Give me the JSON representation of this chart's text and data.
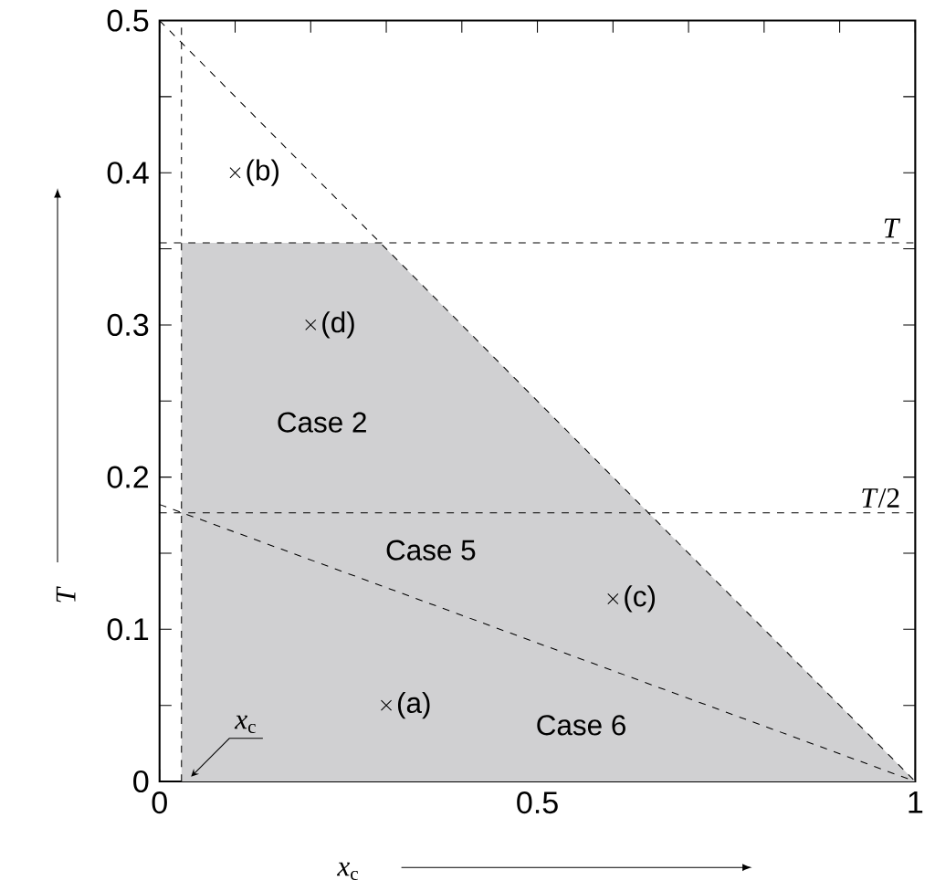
{
  "chart_data": {
    "type": "line",
    "xlabel": "*x*$_{c}$",
    "ylabel": "*T*",
    "xlim": [
      0,
      1
    ],
    "ylim": [
      0,
      0.5
    ],
    "xticks": [
      0,
      {
        "value": 0.1,
        "label": null
      },
      {
        "value": 0.2,
        "label": null
      },
      {
        "value": 0.3,
        "label": null
      },
      {
        "value": 0.4,
        "label": null
      },
      0.5,
      {
        "value": 0.6,
        "label": null
      },
      {
        "value": 0.7,
        "label": null
      },
      {
        "value": 0.8,
        "label": null
      },
      {
        "value": 0.9,
        "label": null
      },
      1
    ],
    "yticks": [
      0,
      {
        "value": 0.05,
        "label": null
      },
      0.1,
      {
        "value": 0.15,
        "label": null
      },
      0.2,
      {
        "value": 0.25,
        "label": null
      },
      0.3,
      {
        "value": 0.35,
        "label": null
      },
      0.4,
      {
        "value": 0.45,
        "label": null
      },
      0.5
    ],
    "series": [
      {
        "type": "area",
        "color": "#d0d0d2",
        "x": [
          0.029,
          0.029,
          0.292,
          1
        ],
        "values": [
          0,
          0.354,
          0.354,
          0
        ]
      },
      {
        "color": "#000000",
        "line_style": "dashed",
        "x": [
          0,
          1
        ],
        "values": [
          0.5,
          0
        ]
      },
      {
        "color": "#000000",
        "line_style": "dashed",
        "x": [
          0,
          1
        ],
        "values": [
          0.182,
          0
        ]
      },
      {
        "type": "scatter",
        "color": "#000000",
        "marker": "cross",
        "x": [
          0.3,
          0.1,
          0.6,
          0.2
        ],
        "values": [
          0.05,
          0.4,
          0.12,
          0.3
        ]
      }
    ],
    "ref_lines": [
      {
        "axis": "y",
        "value": 0.354,
        "label": "*T*",
        "color": "#000000",
        "line_style": "dashed"
      },
      {
        "axis": "y",
        "value": 0.1765,
        "label": "*T*/2",
        "color": "#000000",
        "line_style": "dashed"
      },
      {
        "axis": "x",
        "value": 0.029,
        "label": "*x*$_{c}$",
        "color": "#000000",
        "line_style": "dashed"
      }
    ],
    "annotations": [
      {
        "text": "(a)",
        "x": 0.3,
        "y": 0.05
      },
      {
        "text": "(b)",
        "x": 0.1,
        "y": 0.4
      },
      {
        "text": "(c)",
        "x": 0.6,
        "y": 0.12
      },
      {
        "text": "(d)",
        "x": 0.2,
        "y": 0.3
      },
      "Case 2",
      "Case 5",
      "Case 6"
    ]
  }
}
